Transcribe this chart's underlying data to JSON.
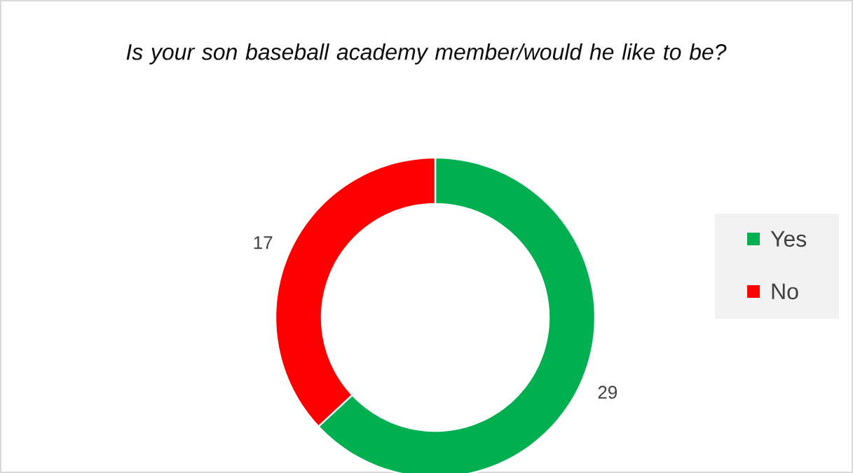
{
  "chart_data": {
    "type": "donut",
    "title": "Is your son baseball academy member/would he like to be?",
    "categories": [
      "Yes",
      "No"
    ],
    "values": [
      29,
      17
    ],
    "colors": [
      "#00b050",
      "#ff0000"
    ],
    "data_labels": true,
    "legend": "right"
  }
}
